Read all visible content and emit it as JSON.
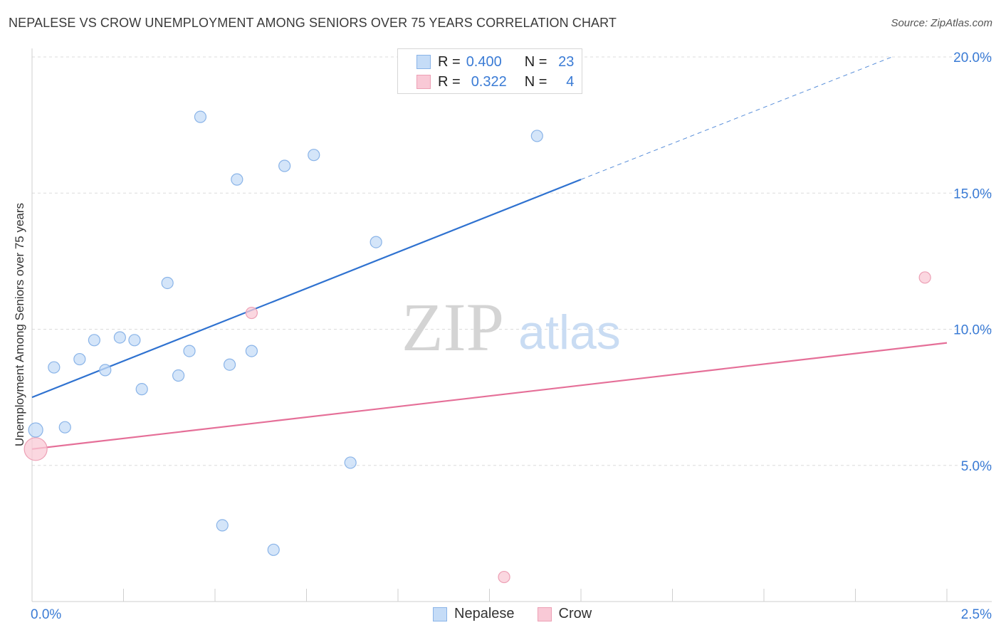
{
  "header": {
    "title": "NEPALESE VS CROW UNEMPLOYMENT AMONG SENIORS OVER 75 YEARS CORRELATION CHART",
    "source": "Source: ZipAtlas.com"
  },
  "legend": {
    "rows": [
      {
        "r_label": "R =",
        "r_value": "0.400",
        "n_label": "N =",
        "n_value": "23"
      },
      {
        "r_label": "R =",
        "r_value": "0.322",
        "n_label": "N =",
        "n_value": "4"
      }
    ]
  },
  "watermark": {
    "zip": "ZIP",
    "atlas": "atlas"
  },
  "colors": {
    "nepalese_fill": "#c5dcf7",
    "nepalese_stroke": "#8ab4e8",
    "nepalese_line": "#2f72d0",
    "crow_fill": "#f9c9d6",
    "crow_stroke": "#eda0b5",
    "crow_line": "#e56f98",
    "tick_label": "#3a7bd5"
  },
  "chart_data": {
    "type": "scatter",
    "title": "NEPALESE VS CROW UNEMPLOYMENT AMONG SENIORS OVER 75 YEARS CORRELATION CHART",
    "xlabel": "",
    "ylabel": "Unemployment Among Seniors over 75 years",
    "xlim": [
      0,
      2.5
    ],
    "ylim": [
      0,
      20
    ],
    "x_tick_labels": [
      {
        "value": 0,
        "label": "0.0%"
      },
      {
        "value": 2.5,
        "label": "2.5%"
      }
    ],
    "y_ticks": [
      {
        "value": 5,
        "label": "5.0%"
      },
      {
        "value": 10,
        "label": "10.0%"
      },
      {
        "value": 15,
        "label": "15.0%"
      },
      {
        "value": 20,
        "label": "20.0%"
      }
    ],
    "series": [
      {
        "name": "Nepalese",
        "points": [
          {
            "x": 0.01,
            "y": 6.3,
            "big": true
          },
          {
            "x": 0.06,
            "y": 8.6
          },
          {
            "x": 0.09,
            "y": 6.4
          },
          {
            "x": 0.13,
            "y": 8.9
          },
          {
            "x": 0.17,
            "y": 9.6
          },
          {
            "x": 0.2,
            "y": 8.5
          },
          {
            "x": 0.24,
            "y": 9.7
          },
          {
            "x": 0.28,
            "y": 9.6
          },
          {
            "x": 0.3,
            "y": 7.8
          },
          {
            "x": 0.37,
            "y": 11.7
          },
          {
            "x": 0.4,
            "y": 8.3
          },
          {
            "x": 0.43,
            "y": 9.2
          },
          {
            "x": 0.46,
            "y": 17.8
          },
          {
            "x": 0.52,
            "y": 2.8
          },
          {
            "x": 0.54,
            "y": 8.7
          },
          {
            "x": 0.56,
            "y": 15.5
          },
          {
            "x": 0.6,
            "y": 9.2
          },
          {
            "x": 0.66,
            "y": 1.9
          },
          {
            "x": 0.69,
            "y": 16.0
          },
          {
            "x": 0.77,
            "y": 16.4
          },
          {
            "x": 0.87,
            "y": 5.1
          },
          {
            "x": 0.94,
            "y": 13.2
          },
          {
            "x": 1.38,
            "y": 17.1
          }
        ],
        "trend": {
          "x0": 0,
          "y0": 7.5,
          "x1": 1.5,
          "y1": 15.5,
          "dash_x1": 2.35,
          "dash_y1": 20.0
        }
      },
      {
        "name": "Crow",
        "points": [
          {
            "x": 0.01,
            "y": 5.6,
            "big": true
          },
          {
            "x": 0.6,
            "y": 10.6
          },
          {
            "x": 1.29,
            "y": 0.9
          },
          {
            "x": 2.44,
            "y": 11.9
          }
        ],
        "trend": {
          "x0": 0,
          "y0": 5.6,
          "x1": 2.5,
          "y1": 9.5
        }
      }
    ]
  }
}
